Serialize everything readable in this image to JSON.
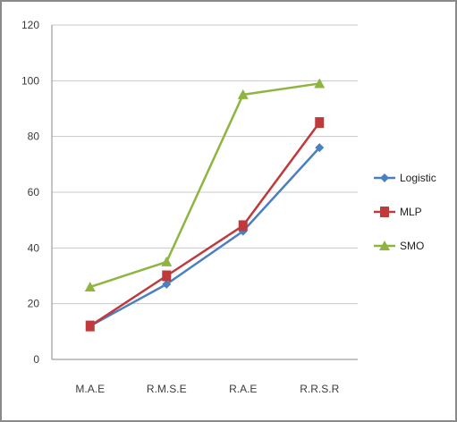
{
  "chart_data": {
    "type": "line",
    "title": "",
    "xlabel": "",
    "ylabel": "",
    "categories": [
      "M.A.E",
      "R.M.S.E",
      "R.A.E",
      "R.R.S.R"
    ],
    "ylim": [
      0,
      120
    ],
    "yticks": [
      0,
      20,
      40,
      60,
      80,
      100,
      120
    ],
    "grid": true,
    "legend_position": "right",
    "series": [
      {
        "name": "Logistic",
        "color": "#4a7fc1",
        "marker": "diamond",
        "values": [
          12,
          27,
          46,
          76
        ]
      },
      {
        "name": "MLP",
        "color": "#c0393b",
        "marker": "square",
        "values": [
          12,
          30,
          48,
          85
        ]
      },
      {
        "name": "SMO",
        "color": "#8db53f",
        "marker": "triangle",
        "values": [
          26,
          35,
          95,
          99
        ]
      }
    ]
  }
}
